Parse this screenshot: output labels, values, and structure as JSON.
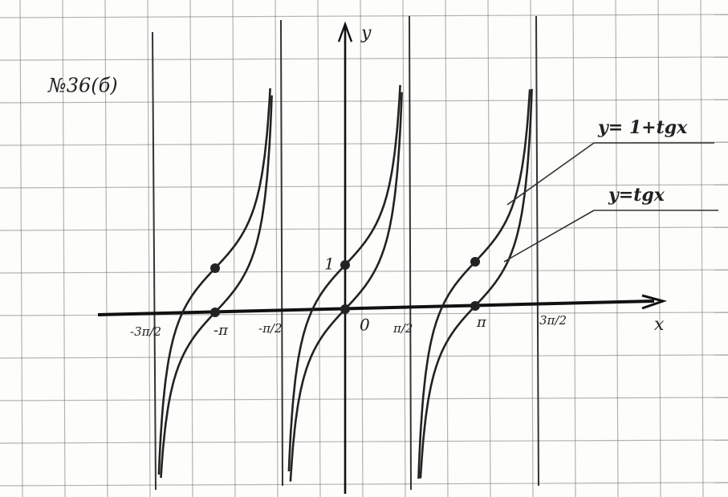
{
  "problem": "№36(б)",
  "axes": {
    "x_label": "x",
    "y_label": "y",
    "origin": "0",
    "y_one": "1"
  },
  "x_ticks": {
    "minus_3pi_2": "-3π/2",
    "minus_pi": "-π",
    "minus_pi_2": "-π/2",
    "pi_2": "π/2",
    "pi": "π",
    "three_pi_2": "3π/2"
  },
  "legend": {
    "shifted": "y= 1+tgx",
    "base": "y=tgx"
  }
}
